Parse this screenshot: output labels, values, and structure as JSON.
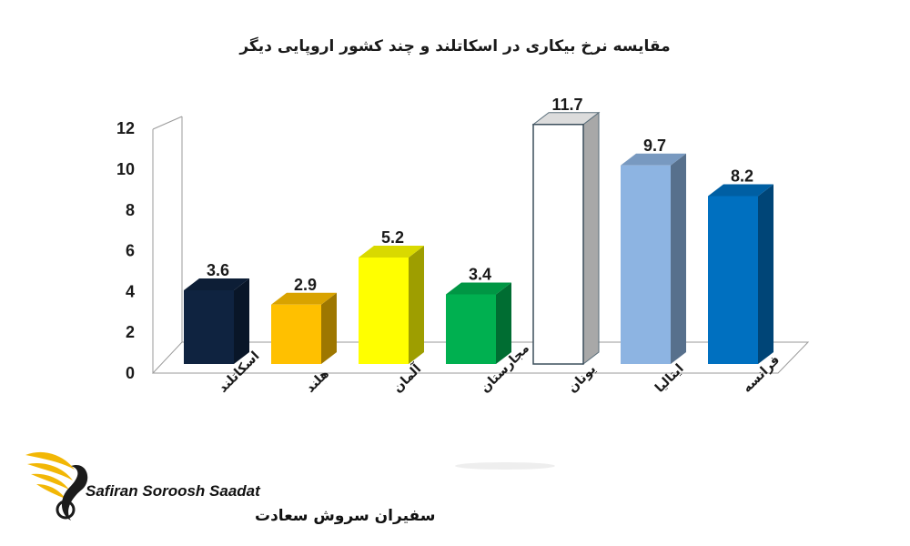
{
  "chart_data": {
    "type": "bar",
    "title": "مقایسه نرخ بیکاری در اسکاتلند و چند کشور اروپایی دیگر",
    "categories": [
      "اسکاتلند",
      "هلند",
      "آلمان",
      "مجارستان",
      "یونان",
      "ایتالیا",
      "فرانسه"
    ],
    "values": [
      3.6,
      2.9,
      5.2,
      3.4,
      11.7,
      9.7,
      8.2
    ],
    "value_labels": [
      "3.6",
      "2.9",
      "5.2",
      "3.4",
      "11.7",
      "9.7",
      "8.2"
    ],
    "yticks": [
      "0",
      "2",
      "4",
      "6",
      "8",
      "10",
      "12"
    ],
    "ylim": [
      0,
      12
    ],
    "colors": [
      "#0f2340",
      "#ffc000",
      "#ffff00",
      "#00b050",
      "#ffffff",
      "#8db4e2",
      "#0070c0"
    ],
    "grid": false,
    "legend": "none",
    "style": "3d-column"
  },
  "logo": {
    "name_en": "Safiran Soroosh Saadat",
    "name_fa": "سفیران سروش سعادت",
    "accent": "#f2b705"
  }
}
